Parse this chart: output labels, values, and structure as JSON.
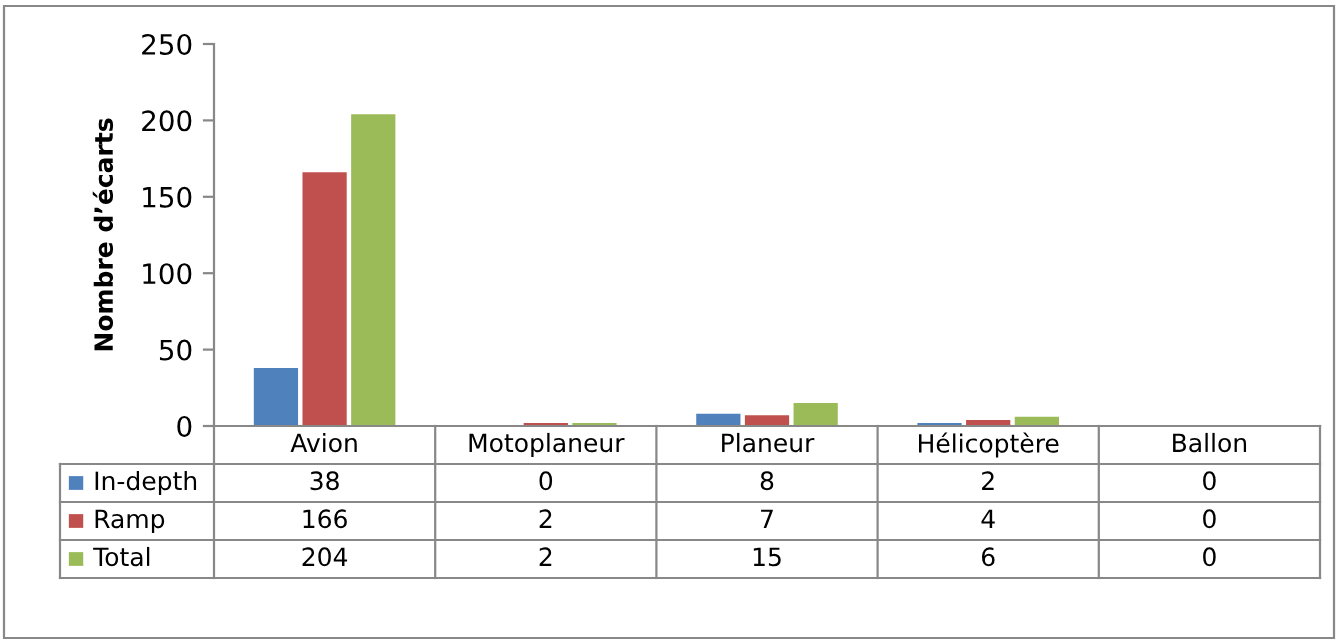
{
  "chart_data": {
    "type": "bar",
    "ylabel": "Nombre d’écarts",
    "categories": [
      "Avion",
      "Motoplaneur",
      "Planeur",
      "Hélicoptère",
      "Ballon"
    ],
    "series": [
      {
        "name": "In-depth",
        "color": "#4f81bd",
        "values": [
          38,
          0,
          8,
          2,
          0
        ]
      },
      {
        "name": "Ramp",
        "color": "#c0504d",
        "values": [
          166,
          2,
          7,
          4,
          0
        ]
      },
      {
        "name": "Total",
        "color": "#9bbb59",
        "values": [
          204,
          2,
          15,
          6,
          0
        ]
      }
    ],
    "ylim": [
      0,
      250
    ],
    "yticks": [
      0,
      50,
      100,
      150,
      200,
      250
    ],
    "grid": false,
    "legend": "bottom",
    "data_labels": true
  }
}
